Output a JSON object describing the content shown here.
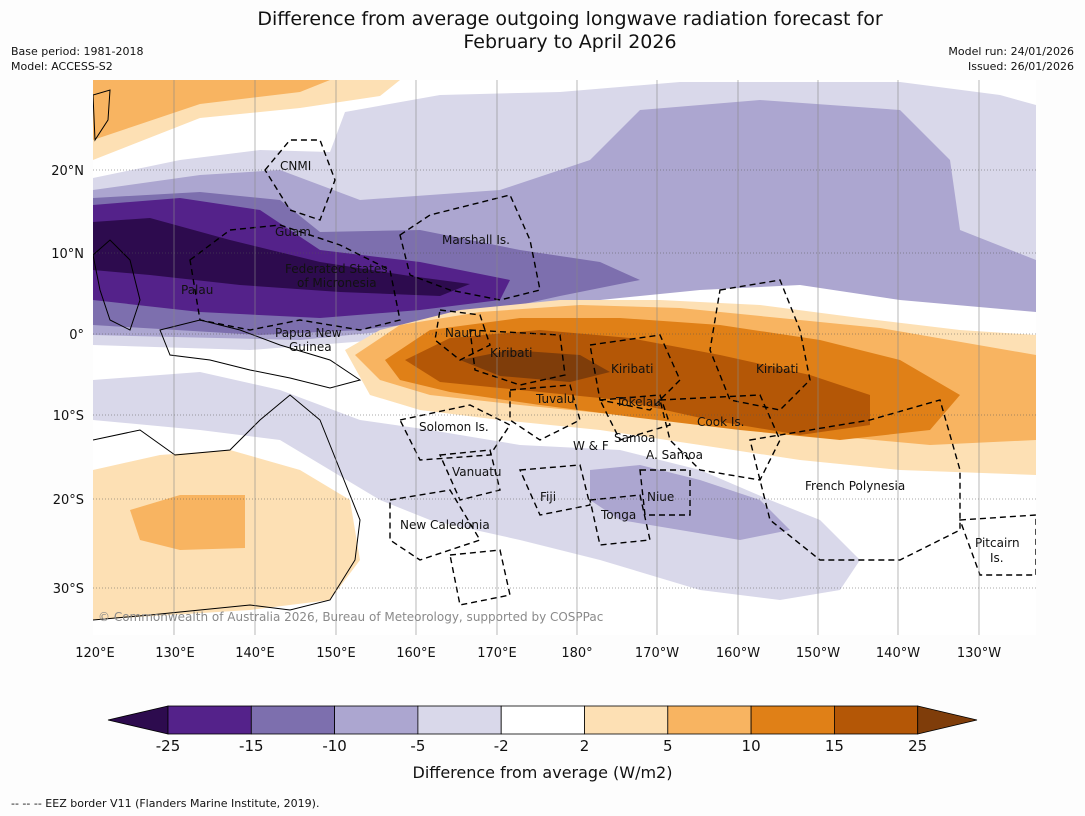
{
  "title_line1": "Difference from average outgoing longwave radiation forecast for",
  "title_line2": "February to April 2026",
  "meta_left": [
    "Base period: 1981-2018",
    "Model: ACCESS-S2"
  ],
  "meta_right": [
    "Model run: 24/01/2026",
    "Issued: 26/01/2026"
  ],
  "lat_labels": [
    "20°N",
    "10°N",
    "0°",
    "10°S",
    "20°S",
    "30°S"
  ],
  "lon_labels": [
    "120°E",
    "130°E",
    "140°E",
    "150°E",
    "160°E",
    "170°E",
    "180°",
    "170°W",
    "160°W",
    "150°W",
    "140°W",
    "130°W"
  ],
  "place_labels": [
    "CNMI",
    "Guam",
    "Marshall Is.",
    "Federated States",
    "of Micronesia",
    "Palau",
    "Papua New",
    "Guinea",
    "Nauru",
    "Kiribati",
    "Kiribati",
    "Kiribati",
    "Tuvalu",
    "Tokelau",
    "Cook Is.",
    "Solomon Is.",
    "W & F",
    "Samoa",
    "A. Samoa",
    "Vanuatu",
    "Fiji",
    "Niue",
    "Tonga",
    "French Polynesia",
    "New Caledonia",
    "Pitcairn",
    "Is."
  ],
  "copyright": "© Commonwealth of Australia 2026, Bureau of Meteorology, supported by COSPPac",
  "colorbar": {
    "ticks": [
      "-25",
      "-15",
      "-10",
      "-5",
      "-2",
      "2",
      "5",
      "10",
      "15",
      "25"
    ],
    "colors": [
      "#2d0b4e",
      "#54228a",
      "#7d6fae",
      "#aca6d0",
      "#d9d8ea",
      "#ffffff",
      "#fde0b4",
      "#f8b461",
      "#e08017",
      "#b45706",
      "#7f3d0a"
    ],
    "label": "Difference from average (W/m2)"
  },
  "footnote": "-- -- -- EEZ border V11 (Flanders Marine Institute, 2019)."
}
